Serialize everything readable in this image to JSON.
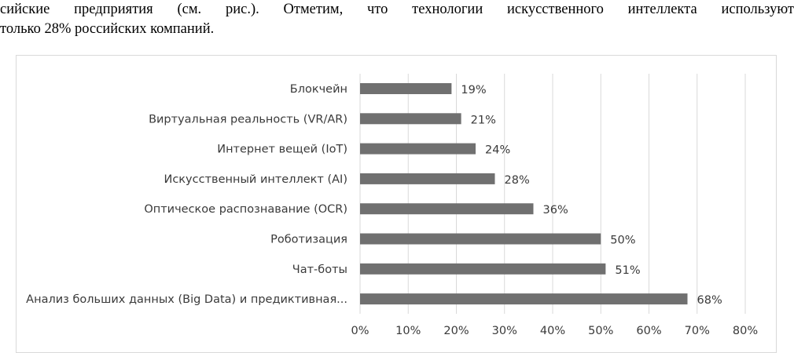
{
  "document": {
    "lines": [
      "сийские предприятия (см. рис.). Отметим, что технологии искусственного интеллекта используют",
      "только 28% российских компаний."
    ]
  },
  "chart_data": {
    "type": "bar",
    "orientation": "horizontal",
    "categories": [
      "Блокчейн",
      "Виртуальная реальность (VR/AR)",
      "Интернет вещей (IoT)",
      "Искусственный интеллект (AI)",
      "Оптическое распознавание (OCR)",
      "Роботизация",
      "Чат-боты",
      "Анализ больших данных (Big Data) и предиктивная..."
    ],
    "values": [
      19,
      21,
      24,
      28,
      36,
      50,
      51,
      68
    ],
    "value_labels": [
      "19%",
      "21%",
      "24%",
      "28%",
      "36%",
      "50%",
      "51%",
      "68%"
    ],
    "xlim": [
      0,
      80
    ],
    "xticks": [
      0,
      10,
      20,
      30,
      40,
      50,
      60,
      70,
      80
    ],
    "xtick_labels": [
      "0%",
      "10%",
      "20%",
      "30%",
      "40%",
      "50%",
      "60%",
      "70%",
      "80%"
    ],
    "grid": "vertical",
    "bar_color": "#707070",
    "grid_color": "#d9d9d9",
    "text_color": "#3a3a3a"
  }
}
